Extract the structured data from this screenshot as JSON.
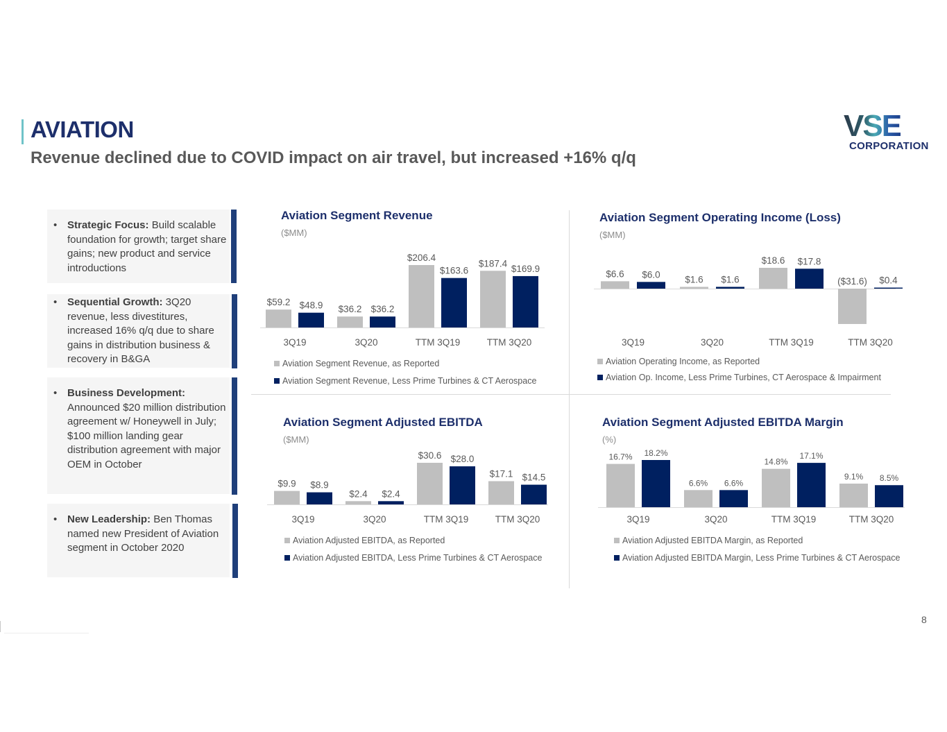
{
  "header": {
    "title": "AVIATION",
    "subtitle": "Revenue declined due to COVID impact on air travel, but increased +16% q/q"
  },
  "logo": {
    "mark": "VSE",
    "name": "CORPORATION"
  },
  "colors": {
    "reported": "#bfbfbf",
    "adjusted": "#002060",
    "title": "#1d2f6b",
    "accent_bar": "#1f3f7a",
    "teal": "#6fc3c8"
  },
  "highlights": [
    {
      "bullet": "•",
      "label": "Strategic Focus:",
      "text": " Build scalable foundation for growth; target share gains; new product and service introductions"
    },
    {
      "bullet": "•",
      "label": "Sequential Growth:",
      "text": " 3Q20 revenue, less divestitures, increased 16% q/q due to share gains in distribution business & recovery in B&GA"
    },
    {
      "bullet": "•",
      "label": "Business Development:",
      "text": " Announced $20 million distribution agreement w/ Honeywell in July; $100 million landing gear distribution agreement with major OEM in October"
    },
    {
      "bullet": "•",
      "label": "New Leadership:",
      "text": " Ben Thomas named new President of Aviation segment in October 2020"
    }
  ],
  "page_number": "8",
  "chart_data": [
    {
      "type": "bar",
      "title": "Aviation Segment Revenue",
      "unit": "($MM)",
      "categories": [
        "3Q19",
        "3Q20",
        "TTM 3Q19",
        "TTM 3Q20"
      ],
      "series": [
        {
          "name": "Aviation Segment Revenue, as Reported",
          "values": [
            59.2,
            36.2,
            206.4,
            187.4
          ],
          "labels": [
            "$59.2",
            "$36.2",
            "$206.4",
            "$187.4"
          ]
        },
        {
          "name": "Aviation Segment Revenue, Less Prime Turbines & CT Aerospace",
          "values": [
            48.9,
            36.2,
            163.6,
            169.9
          ],
          "labels": [
            "$48.9",
            "$36.2",
            "$163.6",
            "$169.9"
          ]
        }
      ],
      "ylim": [
        0,
        240
      ],
      "grid": false,
      "legend": "bottom"
    },
    {
      "type": "bar",
      "title": "Aviation Segment Operating Income (Loss)",
      "unit": "($MM)",
      "categories": [
        "3Q19",
        "3Q20",
        "TTM 3Q19",
        "TTM 3Q20"
      ],
      "series": [
        {
          "name": "Aviation Operating Income, as Reported",
          "values": [
            6.6,
            1.6,
            18.6,
            -31.6
          ],
          "labels": [
            "$6.6",
            "$1.6",
            "$18.6",
            "($31.6)"
          ]
        },
        {
          "name": "Aviation Op. Income, Less Prime Turbines, CT Aerospace & Impairment",
          "values": [
            6.0,
            1.6,
            17.8,
            0.4
          ],
          "labels": [
            "$6.0",
            "$1.6",
            "$17.8",
            "$0.4"
          ]
        }
      ],
      "ylim": [
        -35,
        30
      ],
      "grid": false,
      "legend": "bottom"
    },
    {
      "type": "bar",
      "title": "Aviation Segment Adjusted EBITDA",
      "unit": "($MM)",
      "categories": [
        "3Q19",
        "3Q20",
        "TTM 3Q19",
        "TTM 3Q20"
      ],
      "series": [
        {
          "name": "Aviation Adjusted EBITDA, as Reported",
          "values": [
            9.9,
            2.4,
            30.6,
            17.1
          ],
          "labels": [
            "$9.9",
            "$2.4",
            "$30.6",
            "$17.1"
          ]
        },
        {
          "name": "Aviation Adjusted EBITDA, Less Prime Turbines & CT Aerospace",
          "values": [
            8.9,
            2.4,
            28.0,
            14.5
          ],
          "labels": [
            "$8.9",
            "$2.4",
            "$28.0",
            "$14.5"
          ]
        }
      ],
      "ylim": [
        0,
        36
      ],
      "grid": false,
      "legend": "bottom"
    },
    {
      "type": "bar",
      "title": "Aviation Segment Adjusted EBITDA Margin",
      "unit": "(%)",
      "categories": [
        "3Q19",
        "3Q20",
        "TTM 3Q19",
        "TTM 3Q20"
      ],
      "series": [
        {
          "name": "Aviation Adjusted EBITDA Margin, as Reported",
          "values": [
            16.7,
            6.6,
            14.8,
            9.1
          ],
          "labels": [
            "16.7%",
            "6.6%",
            "14.8%",
            "9.1%"
          ]
        },
        {
          "name": "Aviation Adjusted EBITDA Margin, Less Prime Turbines & CT Aerospace",
          "values": [
            18.2,
            6.6,
            17.1,
            8.5
          ],
          "labels": [
            "18.2%",
            "6.6%",
            "17.1%",
            "8.5%"
          ]
        }
      ],
      "ylim": [
        0,
        20
      ],
      "grid": false,
      "legend": "bottom"
    }
  ]
}
